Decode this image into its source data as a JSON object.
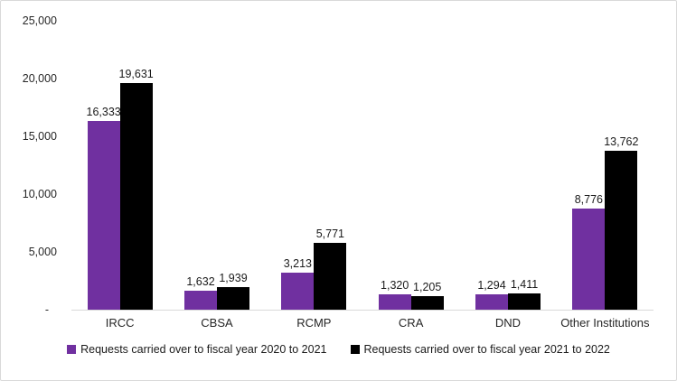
{
  "chart_data": {
    "type": "bar",
    "title": "",
    "categories": [
      "IRCC",
      "CBSA",
      "RCMP",
      "CRA",
      "DND",
      "Other Institutions"
    ],
    "series": [
      {
        "name": "Requests carried over to fiscal year 2020 to 2021",
        "color": "#7030A0",
        "values": [
          16333,
          1632,
          3213,
          1320,
          1294,
          8776
        ],
        "labels": [
          "16,333",
          "1,632",
          "3,213",
          "1,320",
          "1,294",
          "8,776"
        ]
      },
      {
        "name": "Requests carried over to fiscal year 2021 to 2022",
        "color": "#000000",
        "values": [
          19631,
          1939,
          5771,
          1205,
          1411,
          13762
        ],
        "labels": [
          "19,631",
          "1,939",
          "5,771",
          "1,205",
          "1,411",
          "13,762"
        ]
      }
    ],
    "y_axis": {
      "tick_labels": [
        "25,000",
        "20,000",
        "15,000",
        "10,000",
        "5,000",
        "-"
      ],
      "tick_values": [
        25000,
        20000,
        15000,
        10000,
        5000,
        0
      ],
      "min": 0,
      "max": 25000
    },
    "xlabel": "",
    "ylabel": "",
    "grid": false,
    "legend_position": "bottom",
    "axis_color": "#d9d9d9",
    "plot_background": "#ffffff"
  }
}
